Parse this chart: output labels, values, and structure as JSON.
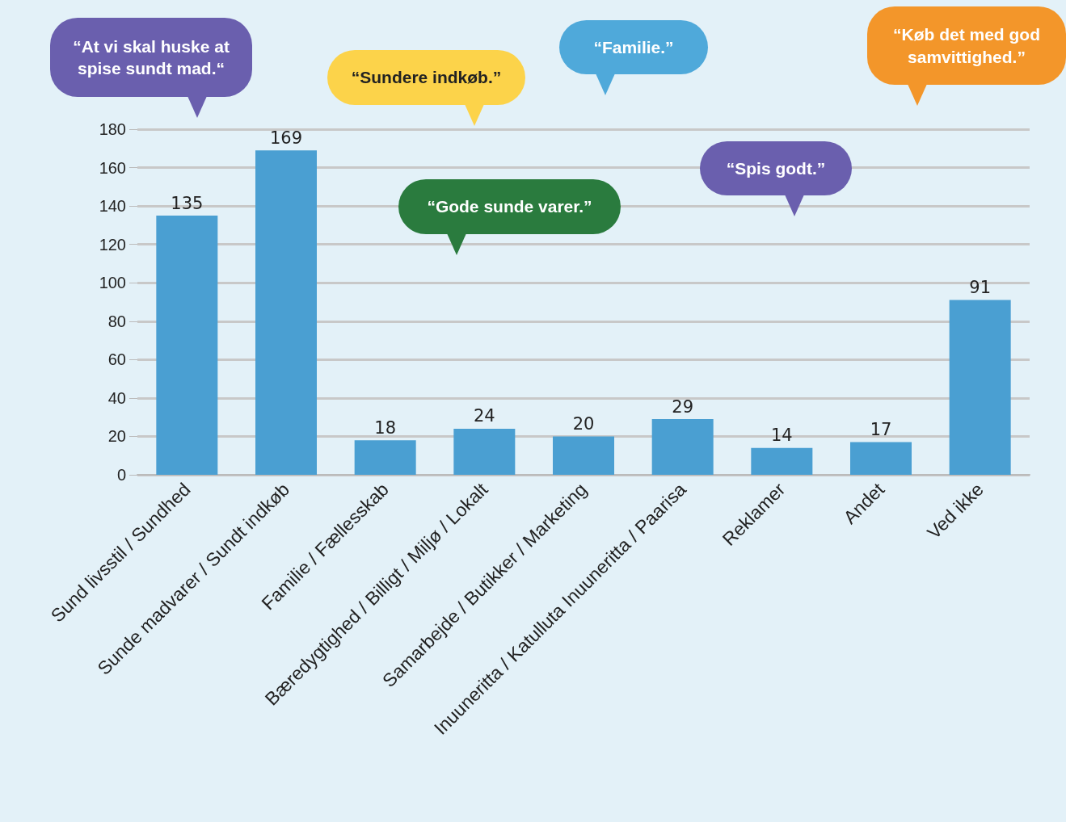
{
  "chart_data": {
    "type": "bar",
    "categories": [
      "Sund livsstil / Sundhed",
      "Sunde madvarer / Sundt indkøb",
      "Familie / Fællesskab",
      "Bæredygtighed / Billigt / Miljø / Lokalt",
      "Samarbejde / Butikker / Marketing",
      "Inuuneritta / Katulluta Inuuneritta / Paarisa",
      "Reklamer",
      "Andet",
      "Ved ikke"
    ],
    "values": [
      135,
      169,
      18,
      24,
      20,
      29,
      14,
      17,
      91
    ],
    "color": "#4a9fd2",
    "ylim": [
      0,
      180
    ],
    "yticks": [
      0,
      20,
      40,
      60,
      80,
      100,
      120,
      140,
      160,
      180
    ],
    "grid": "y",
    "data_labels": true,
    "annotations": [
      "“At vi skal huske at spise sundt mad.“",
      "“Sundere indkøb.”",
      "“Familie.”",
      "“Køb det med god samvittighed.”",
      "“Gode sunde varer.”",
      "“Spis godt.”"
    ]
  }
}
